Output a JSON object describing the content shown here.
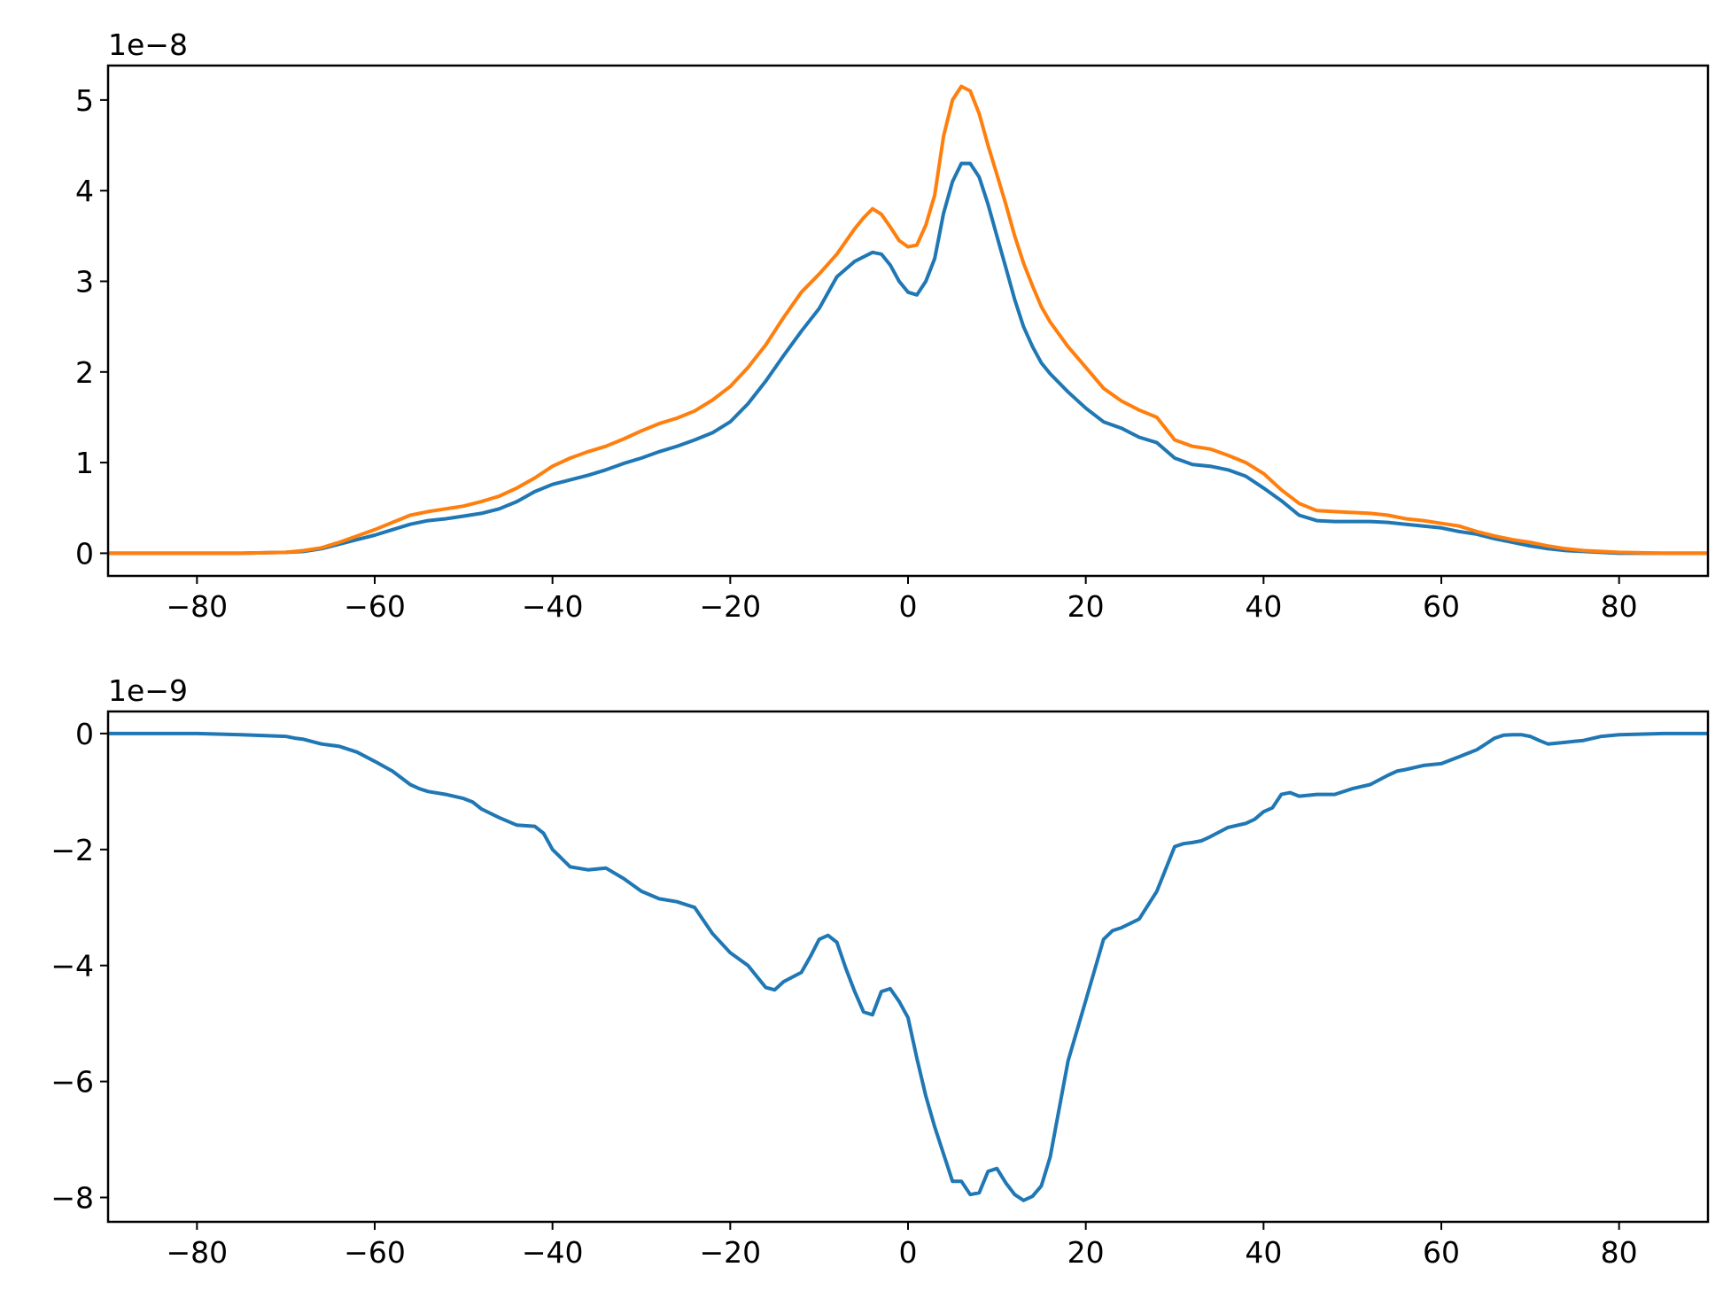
{
  "chart_data": [
    {
      "type": "line",
      "title": "",
      "xlabel": "",
      "ylabel": "",
      "offset_label": "1e−8",
      "xlim": [
        -90,
        90
      ],
      "ylim": [
        -0.25,
        5.38
      ],
      "xticks": [
        -80,
        -60,
        -40,
        -20,
        0,
        20,
        40,
        60,
        80
      ],
      "xtick_labels": [
        "−80",
        "−60",
        "−40",
        "−20",
        "0",
        "20",
        "40",
        "60",
        "80"
      ],
      "yticks": [
        0,
        1,
        2,
        3,
        4,
        5
      ],
      "ytick_labels": [
        "0",
        "1",
        "2",
        "3",
        "4",
        "5"
      ],
      "grid": false,
      "legend": "none",
      "series": [
        {
          "color": "#1f77b4",
          "x": [
            -90,
            -80,
            -75,
            -70,
            -68,
            -66,
            -64,
            -62,
            -60,
            -58,
            -56,
            -54,
            -52,
            -50,
            -48,
            -46,
            -44,
            -42,
            -40,
            -38,
            -36,
            -34,
            -32,
            -30,
            -28,
            -26,
            -24,
            -22,
            -20,
            -18,
            -16,
            -14,
            -12,
            -10,
            -8,
            -6,
            -4,
            -3,
            -2,
            -1,
            0,
            1,
            2,
            3,
            4,
            5,
            6,
            7,
            8,
            9,
            10,
            11,
            12,
            13,
            14,
            15,
            16,
            18,
            20,
            22,
            24,
            26,
            28,
            30,
            32,
            34,
            36,
            38,
            40,
            42,
            44,
            46,
            48,
            50,
            52,
            54,
            56,
            58,
            60,
            62,
            64,
            66,
            68,
            70,
            72,
            74,
            76,
            78,
            80,
            85,
            90
          ],
          "y": [
            0,
            0,
            0,
            0.01,
            0.02,
            0.05,
            0.1,
            0.15,
            0.2,
            0.26,
            0.32,
            0.36,
            0.38,
            0.41,
            0.44,
            0.49,
            0.57,
            0.68,
            0.76,
            0.81,
            0.86,
            0.92,
            0.99,
            1.05,
            1.12,
            1.18,
            1.25,
            1.33,
            1.45,
            1.65,
            1.9,
            2.18,
            2.45,
            2.7,
            3.05,
            3.22,
            3.32,
            3.3,
            3.18,
            3.0,
            2.88,
            2.85,
            3.0,
            3.25,
            3.75,
            4.1,
            4.3,
            4.3,
            4.15,
            3.85,
            3.5,
            3.15,
            2.8,
            2.5,
            2.28,
            2.1,
            1.98,
            1.78,
            1.6,
            1.45,
            1.38,
            1.28,
            1.22,
            1.05,
            0.98,
            0.96,
            0.92,
            0.85,
            0.72,
            0.58,
            0.42,
            0.36,
            0.35,
            0.35,
            0.35,
            0.34,
            0.32,
            0.3,
            0.28,
            0.24,
            0.21,
            0.16,
            0.12,
            0.08,
            0.05,
            0.03,
            0.02,
            0.01,
            0,
            0,
            0
          ]
        },
        {
          "color": "#ff7f0e",
          "x": [
            -90,
            -80,
            -75,
            -70,
            -68,
            -66,
            -64,
            -62,
            -60,
            -58,
            -56,
            -54,
            -52,
            -50,
            -48,
            -46,
            -44,
            -42,
            -40,
            -38,
            -36,
            -34,
            -32,
            -30,
            -28,
            -26,
            -24,
            -22,
            -20,
            -18,
            -16,
            -14,
            -12,
            -10,
            -8,
            -6,
            -5,
            -4,
            -3,
            -2,
            -1,
            0,
            1,
            2,
            3,
            4,
            5,
            6,
            7,
            8,
            9,
            10,
            11,
            12,
            13,
            14,
            15,
            16,
            18,
            20,
            22,
            24,
            26,
            28,
            30,
            32,
            34,
            36,
            38,
            40,
            42,
            44,
            46,
            48,
            50,
            52,
            54,
            56,
            58,
            60,
            62,
            64,
            66,
            68,
            70,
            72,
            74,
            76,
            78,
            80,
            85,
            90
          ],
          "y": [
            0,
            0,
            0,
            0.01,
            0.03,
            0.06,
            0.12,
            0.19,
            0.26,
            0.34,
            0.42,
            0.46,
            0.49,
            0.52,
            0.57,
            0.63,
            0.72,
            0.83,
            0.96,
            1.05,
            1.12,
            1.18,
            1.26,
            1.35,
            1.43,
            1.49,
            1.57,
            1.69,
            1.84,
            2.05,
            2.3,
            2.6,
            2.88,
            3.08,
            3.3,
            3.58,
            3.7,
            3.8,
            3.74,
            3.6,
            3.45,
            3.38,
            3.4,
            3.62,
            3.95,
            4.6,
            5.0,
            5.15,
            5.1,
            4.85,
            4.5,
            4.18,
            3.85,
            3.5,
            3.2,
            2.95,
            2.72,
            2.55,
            2.28,
            2.05,
            1.82,
            1.68,
            1.58,
            1.5,
            1.25,
            1.18,
            1.15,
            1.08,
            1.0,
            0.88,
            0.7,
            0.55,
            0.47,
            0.46,
            0.45,
            0.44,
            0.42,
            0.38,
            0.36,
            0.33,
            0.3,
            0.24,
            0.19,
            0.15,
            0.12,
            0.08,
            0.05,
            0.03,
            0.02,
            0.01,
            0,
            0
          ]
        }
      ]
    },
    {
      "type": "line",
      "title": "",
      "xlabel": "",
      "ylabel": "",
      "offset_label": "1e−9",
      "xlim": [
        -90,
        90
      ],
      "ylim": [
        -8.42,
        0.38
      ],
      "xticks": [
        -80,
        -60,
        -40,
        -20,
        0,
        20,
        40,
        60,
        80
      ],
      "xtick_labels": [
        "−80",
        "−60",
        "−40",
        "−20",
        "0",
        "20",
        "40",
        "60",
        "80"
      ],
      "yticks": [
        0,
        -2,
        -4,
        -6,
        -8
      ],
      "ytick_labels": [
        "0",
        "−2",
        "−4",
        "−6",
        "−8"
      ],
      "grid": false,
      "legend": "none",
      "series": [
        {
          "color": "#1f77b4",
          "x": [
            -90,
            -80,
            -75,
            -70,
            -69,
            -68,
            -66,
            -64,
            -62,
            -60,
            -58,
            -56,
            -55,
            -54,
            -52,
            -50,
            -49,
            -48,
            -46,
            -44,
            -42,
            -41,
            -40,
            -38,
            -36,
            -34,
            -32,
            -30,
            -28,
            -26,
            -24,
            -22,
            -20,
            -18,
            -16,
            -15,
            -14,
            -12,
            -11,
            -10,
            -9,
            -8,
            -7,
            -6,
            -5,
            -4,
            -3,
            -2,
            -1,
            0,
            1,
            2,
            3,
            4,
            5,
            6,
            7,
            8,
            9,
            10,
            11,
            12,
            13,
            14,
            15,
            16,
            18,
            20,
            22,
            23,
            24,
            26,
            28,
            30,
            31,
            32,
            33,
            34,
            36,
            38,
            39,
            40,
            41,
            42,
            43,
            44,
            46,
            48,
            50,
            52,
            54,
            55,
            56,
            58,
            60,
            62,
            64,
            65,
            66,
            67,
            68,
            69,
            70,
            71,
            72,
            74,
            76,
            78,
            80,
            85,
            90
          ],
          "y": [
            0,
            0,
            -0.02,
            -0.05,
            -0.08,
            -0.1,
            -0.18,
            -0.22,
            -0.32,
            -0.48,
            -0.65,
            -0.88,
            -0.95,
            -1.0,
            -1.05,
            -1.12,
            -1.18,
            -1.3,
            -1.45,
            -1.58,
            -1.6,
            -1.72,
            -2.0,
            -2.3,
            -2.35,
            -2.32,
            -2.5,
            -2.72,
            -2.85,
            -2.9,
            -3.0,
            -3.45,
            -3.78,
            -4.0,
            -4.38,
            -4.42,
            -4.28,
            -4.12,
            -3.85,
            -3.55,
            -3.48,
            -3.6,
            -4.05,
            -4.45,
            -4.8,
            -4.85,
            -4.45,
            -4.4,
            -4.62,
            -4.9,
            -5.6,
            -6.25,
            -6.78,
            -7.25,
            -7.72,
            -7.72,
            -7.95,
            -7.92,
            -7.55,
            -7.5,
            -7.75,
            -7.95,
            -8.05,
            -7.98,
            -7.8,
            -7.3,
            -5.65,
            -4.6,
            -3.55,
            -3.4,
            -3.35,
            -3.2,
            -2.72,
            -1.95,
            -1.9,
            -1.88,
            -1.85,
            -1.78,
            -1.62,
            -1.55,
            -1.48,
            -1.35,
            -1.28,
            -1.05,
            -1.02,
            -1.08,
            -1.05,
            -1.05,
            -0.95,
            -0.88,
            -0.72,
            -0.65,
            -0.62,
            -0.55,
            -0.52,
            -0.4,
            -0.28,
            -0.18,
            -0.08,
            -0.03,
            -0.02,
            -0.02,
            -0.05,
            -0.12,
            -0.18,
            -0.15,
            -0.12,
            -0.05,
            -0.02,
            0,
            0
          ]
        }
      ]
    }
  ]
}
